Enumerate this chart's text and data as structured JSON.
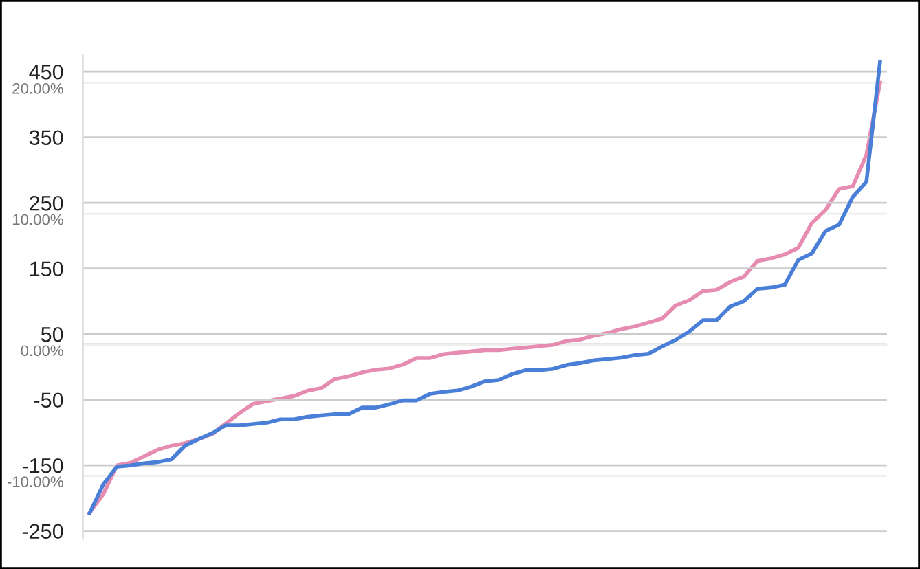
{
  "chart_data": {
    "type": "line",
    "categories": [
      null,
      null,
      null,
      null,
      null,
      null,
      null,
      null,
      null,
      null,
      null,
      null,
      null,
      null,
      null,
      null,
      null,
      null,
      null,
      null,
      null,
      null,
      null,
      null,
      null,
      null,
      null,
      null,
      null,
      null,
      null,
      null,
      null,
      null,
      null,
      null,
      null,
      null,
      null,
      null,
      null,
      null,
      null,
      null,
      null,
      null,
      null,
      null,
      null,
      null,
      null,
      null,
      null,
      null,
      null,
      null,
      null,
      null,
      null
    ],
    "series": [
      {
        "color": "#4a7fd8",
        "values": [
          -223,
          -179,
          -152,
          -150,
          -147,
          -145,
          -141,
          -120,
          -110,
          -101,
          -89,
          -89,
          -87,
          -85,
          -80,
          -80,
          -76,
          -74,
          -72,
          -72,
          -62,
          -62,
          -57,
          -51,
          -51,
          -41,
          -38,
          -36,
          -30,
          -22,
          -20,
          -11,
          -5,
          -5,
          -3,
          3,
          6,
          10,
          12,
          14,
          18,
          20,
          31,
          41,
          54,
          71,
          71,
          92,
          100,
          119,
          121,
          125,
          163,
          173,
          207,
          217,
          259,
          282,
          465
        ]
      },
      {
        "color": "#e58cb0",
        "axis": "y2",
        "values": [
          -12.8,
          -11.4,
          -9.2,
          -9.0,
          -8.5,
          -8.0,
          -7.7,
          -7.5,
          -7.2,
          -6.8,
          -6.0,
          -5.2,
          -4.5,
          -4.3,
          -4.1,
          -3.9,
          -3.5,
          -3.3,
          -2.6,
          -2.4,
          -2.1,
          -1.9,
          -1.8,
          -1.5,
          -1.0,
          -1.0,
          -0.7,
          -0.6,
          -0.5,
          -0.4,
          -0.4,
          -0.3,
          -0.2,
          -0.1,
          0.0,
          0.3,
          0.4,
          0.7,
          0.9,
          1.2,
          1.4,
          1.7,
          2.0,
          3.0,
          3.4,
          4.1,
          4.2,
          4.8,
          5.2,
          6.4,
          6.6,
          6.9,
          7.4,
          9.3,
          10.3,
          11.9,
          12.1,
          14.5,
          20.0
        ]
      }
    ],
    "ylim": [
      -262,
      475
    ],
    "yticks": [
      -250,
      -150,
      -50,
      50,
      150,
      250,
      350,
      450
    ],
    "y2lim": [
      -14.8,
      22.1
    ],
    "y2ticks": [
      {
        "value": -10,
        "label": "-10.00%"
      },
      {
        "value": 0,
        "label": "0.00%"
      },
      {
        "value": 10,
        "label": "10.00%"
      },
      {
        "value": 20,
        "label": "20.00%"
      }
    ],
    "ref_lines": [
      {
        "axis": "y2",
        "value": 0,
        "color": "#9e9e9e"
      }
    ],
    "grid": "y",
    "tick_labels": "y",
    "marker": "none",
    "line_style": "solid"
  }
}
